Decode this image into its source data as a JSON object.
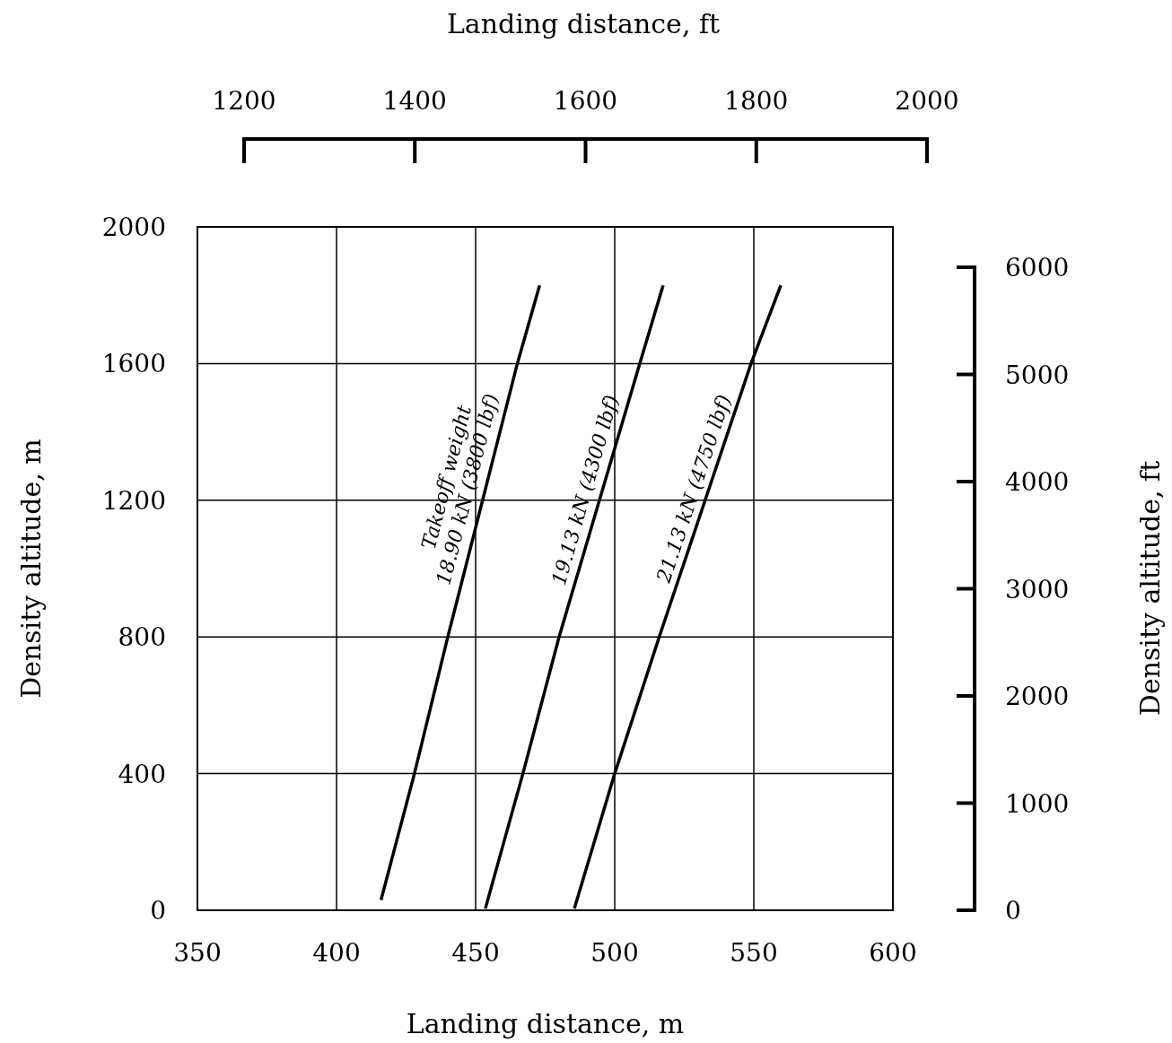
{
  "chart_data": {
    "type": "line",
    "xlabel": "Landing distance, m",
    "ylabel": "Density altitude, m",
    "x2label": "Landing distance, ft",
    "y2label": "Density altitude, ft",
    "xlim": [
      350,
      600
    ],
    "xticks": [
      350,
      400,
      450,
      500,
      550,
      600
    ],
    "ylim": [
      0,
      2000
    ],
    "yticks": [
      0,
      400,
      800,
      1200,
      1600,
      2000
    ],
    "x2lim": [
      1200,
      2000
    ],
    "x2ticks": [
      1200,
      1400,
      1600,
      1800,
      2000
    ],
    "y2lim": [
      0,
      6000
    ],
    "y2ticks": [
      0,
      1000,
      2000,
      3000,
      4000,
      5000,
      6000
    ],
    "grid": true,
    "marker": "none",
    "line_style": "solid",
    "annotations": [
      "Takeoff weight"
    ],
    "series": [
      {
        "name": "18.90 kN (3800 lbf)",
        "color": "#000000",
        "x": [
          416,
          428,
          440,
          465,
          473
        ],
        "values": [
          30,
          400,
          800,
          1600,
          1829
        ]
      },
      {
        "name": "19.13 kN (4300 lbf)",
        "color": "#000000",
        "x": [
          453.5,
          467,
          480,
          509,
          517.4
        ],
        "values": [
          5,
          400,
          800,
          1600,
          1829
        ]
      },
      {
        "name": "21.13 kN (4750 lbf)",
        "color": "#000000",
        "x": [
          485.5,
          500,
          516,
          549,
          559.7
        ],
        "values": [
          5,
          400,
          800,
          1600,
          1829
        ]
      }
    ]
  }
}
